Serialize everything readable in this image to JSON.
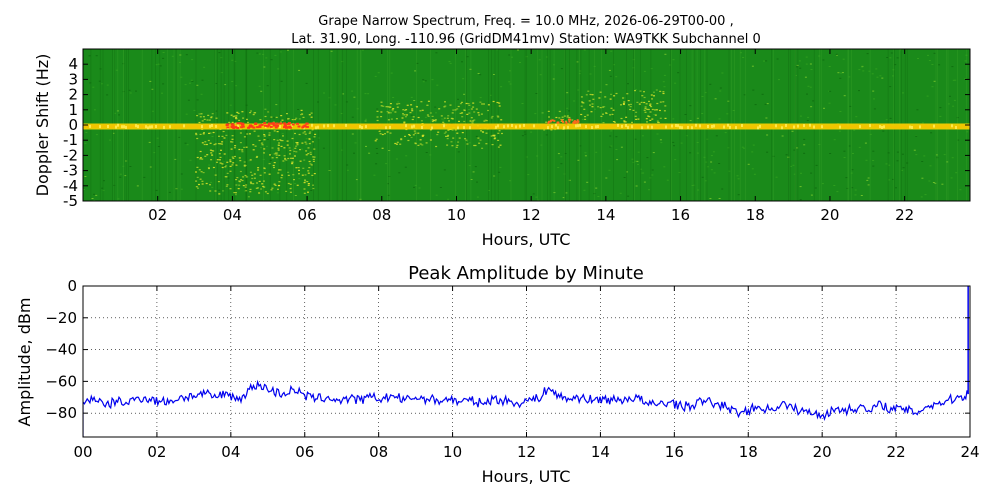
{
  "figure": {
    "title_line1": "Grape Narrow Spectrum, Freq. = 10.0 MHz, 2026-06-29T00-00 ,",
    "title_line2": "Lat.  31.90, Long. -110.96 (GridDM41mv) Station: WA9TKK Subchannel 0"
  },
  "chart_data": [
    {
      "type": "heatmap",
      "title": "",
      "xlabel": "Hours, UTC",
      "ylabel": "Doppler Shift (Hz)",
      "xlim": [
        0,
        23.75
      ],
      "ylim": [
        -5,
        5
      ],
      "x_ticks": [
        2,
        4,
        6,
        8,
        10,
        12,
        14,
        16,
        18,
        20,
        22
      ],
      "x_tick_labels": [
        "02",
        "04",
        "06",
        "08",
        "10",
        "12",
        "14",
        "16",
        "18",
        "20",
        "22"
      ],
      "y_ticks": [
        4,
        3,
        2,
        1,
        0,
        -1,
        -2,
        -3,
        -4,
        -5
      ],
      "y_tick_labels": [
        "4",
        "3",
        "2",
        "1",
        "0",
        "-1",
        "-2",
        "-3",
        "-4",
        "-5"
      ],
      "background_color": "#1a8a1a",
      "carrier_color": "#ffd200",
      "peak_color": "#ff3b1a",
      "carrier_doppler_hz": -0.1,
      "features": [
        {
          "start_h": 3.0,
          "end_h": 6.2,
          "doppler_low": -4.5,
          "doppler_high": 1.0
        },
        {
          "start_h": 7.8,
          "end_h": 11.2,
          "doppler_low": -1.5,
          "doppler_high": 1.6
        },
        {
          "start_h": 12.3,
          "end_h": 13.2,
          "doppler_low": -0.3,
          "doppler_high": 1.0
        },
        {
          "start_h": 13.3,
          "end_h": 15.6,
          "doppler_low": 0.2,
          "doppler_high": 2.3
        }
      ]
    },
    {
      "type": "line",
      "title": "Peak Amplitude by Minute",
      "xlabel": "Hours, UTC",
      "ylabel": "Amplitude, dBm",
      "xlim": [
        0,
        24
      ],
      "ylim": [
        -95,
        0
      ],
      "grid": true,
      "x_ticks": [
        0,
        2,
        4,
        6,
        8,
        10,
        12,
        14,
        16,
        18,
        20,
        22,
        24
      ],
      "x_tick_labels": [
        "00",
        "02",
        "04",
        "06",
        "08",
        "10",
        "12",
        "14",
        "16",
        "18",
        "20",
        "22",
        "24"
      ],
      "y_ticks": [
        0,
        -20,
        -40,
        -60,
        -80
      ],
      "y_tick_labels": [
        "0",
        "−20",
        "−40",
        "−60",
        "−80"
      ],
      "line_color": "#0000ee",
      "x": [
        0,
        0.3,
        0.6,
        0.9,
        1.2,
        1.5,
        1.8,
        2.1,
        2.4,
        2.7,
        3.0,
        3.3,
        3.6,
        3.9,
        4.2,
        4.5,
        4.8,
        5.1,
        5.4,
        5.7,
        6.0,
        6.3,
        6.6,
        6.9,
        7.2,
        7.5,
        7.8,
        8.1,
        8.4,
        8.7,
        9.0,
        9.3,
        9.6,
        9.9,
        10.2,
        10.5,
        10.8,
        11.1,
        11.4,
        11.7,
        12.0,
        12.3,
        12.6,
        12.9,
        13.2,
        13.5,
        13.8,
        14.1,
        14.4,
        14.7,
        15.0,
        15.3,
        15.6,
        15.9,
        16.2,
        16.5,
        16.8,
        17.1,
        17.4,
        17.7,
        18.0,
        18.3,
        18.6,
        18.9,
        19.2,
        19.5,
        19.8,
        20.1,
        20.4,
        20.7,
        21.0,
        21.3,
        21.6,
        21.9,
        22.2,
        22.5,
        22.8,
        23.1,
        23.4,
        23.7,
        23.95
      ],
      "values": [
        -73,
        -70,
        -76,
        -72,
        -74,
        -70,
        -71,
        -73,
        -72,
        -70,
        -69,
        -68,
        -70,
        -67,
        -72,
        -65,
        -62,
        -66,
        -68,
        -65,
        -69,
        -71,
        -70,
        -72,
        -71,
        -72,
        -70,
        -71,
        -69,
        -72,
        -70,
        -71,
        -72,
        -71,
        -73,
        -72,
        -74,
        -71,
        -72,
        -74,
        -72,
        -71,
        -64,
        -70,
        -71,
        -70,
        -72,
        -71,
        -72,
        -71,
        -70,
        -75,
        -74,
        -73,
        -76,
        -75,
        -72,
        -74,
        -76,
        -80,
        -78,
        -76,
        -78,
        -74,
        -77,
        -79,
        -80,
        -81,
        -77,
        -78,
        -76,
        -79,
        -74,
        -78,
        -77,
        -80,
        -76,
        -74,
        -72,
        -70,
        -68
      ]
    }
  ]
}
